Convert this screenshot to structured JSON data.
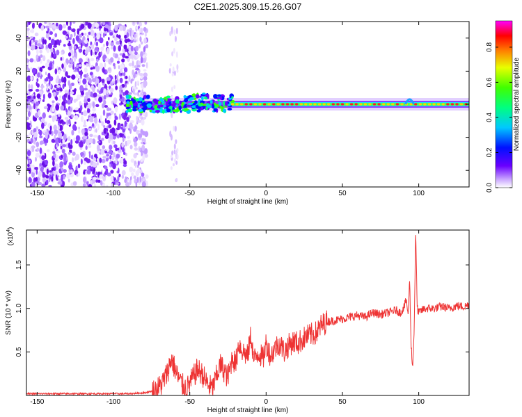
{
  "title": "C2E1.2025.309.15.26.G07",
  "chart_data": [
    {
      "type": "heatmap",
      "xlabel": "Height of straight line (km)",
      "ylabel": "Frequency (Hz)",
      "xlim": [
        -157,
        133
      ],
      "ylim": [
        -50,
        50
      ],
      "x_ticks": [
        -150,
        -100,
        -50,
        0,
        50,
        100
      ],
      "x_tick_labels": [
        "-150",
        "-100",
        "-50",
        "0",
        "50",
        "100"
      ],
      "y_ticks": [
        -40,
        -20,
        0,
        20,
        40
      ],
      "y_tick_labels": [
        "-40",
        "-20",
        "0",
        "20",
        "40"
      ],
      "colorbar": {
        "label": "Normalized spectral amplitude",
        "range": [
          0,
          0.95
        ],
        "ticks": [
          0.0,
          0.2,
          0.4,
          0.6,
          0.8
        ],
        "tick_labels": [
          "0.0",
          "0.2",
          "0.4",
          "0.6",
          "0.8"
        ],
        "colormap": "rainbow (white-violet-blue-cyan-green-yellow-red-magenta)"
      },
      "features": {
        "noise_region_km": [
          -157,
          -78
        ],
        "sparse_noise_column_km": [
          -63,
          -58
        ],
        "track_start_km": -92,
        "track_center_hz": 0,
        "track_amplitude_range": [
          0.4,
          0.9
        ],
        "bump_km": 94
      }
    },
    {
      "type": "line",
      "xlabel": "Height of straight line (km)",
      "ylabel": "SNR (10 * v/v)",
      "y_scale_label": "(x10",
      "y_scale_exponent": "4",
      "scale_factor": 10000,
      "xlim": [
        -157,
        133
      ],
      "ylim": [
        0,
        1.9
      ],
      "x_ticks": [
        -150,
        -100,
        -50,
        0,
        50,
        100
      ],
      "x_tick_labels": [
        "-150",
        "-100",
        "-50",
        "0",
        "50",
        "100"
      ],
      "y_ticks": [
        0.5,
        1.0,
        1.5
      ],
      "y_tick_labels": [
        "0.5",
        "1.0",
        "1.5"
      ],
      "color": "#ee3333",
      "series": [
        {
          "name": "SNR",
          "x": [
            -157,
            -140,
            -120,
            -100,
            -90,
            -80,
            -72,
            -68,
            -65,
            -62,
            -58,
            -55,
            -52,
            -48,
            -45,
            -42,
            -38,
            -35,
            -32,
            -30,
            -28,
            -25,
            -22,
            -20,
            -18,
            -15,
            -12,
            -10,
            -8,
            -5,
            -2,
            0,
            3,
            6,
            9,
            12,
            15,
            18,
            21,
            24,
            27,
            30,
            33,
            36,
            40,
            45,
            50,
            55,
            60,
            65,
            70,
            75,
            80,
            85,
            88,
            90,
            92,
            93,
            94,
            95,
            96,
            97,
            98,
            99,
            100,
            102,
            105,
            110,
            115,
            120,
            125,
            130,
            133
          ],
          "y": [
            0.02,
            0.02,
            0.02,
            0.02,
            0.02,
            0.03,
            0.06,
            0.14,
            0.25,
            0.42,
            0.22,
            0.12,
            0.08,
            0.2,
            0.3,
            0.25,
            0.12,
            0.08,
            0.25,
            0.35,
            0.3,
            0.2,
            0.45,
            0.35,
            0.6,
            0.5,
            0.45,
            0.7,
            0.4,
            0.5,
            0.42,
            0.6,
            0.45,
            0.55,
            0.6,
            0.5,
            0.58,
            0.62,
            0.6,
            0.65,
            0.68,
            0.7,
            0.72,
            0.8,
            0.85,
            0.86,
            0.88,
            0.9,
            0.92,
            0.9,
            0.95,
            0.93,
            0.95,
            0.98,
            0.95,
            1.0,
            1.1,
            0.9,
            1.35,
            0.6,
            0.3,
            0.75,
            1.9,
            1.0,
            0.95,
            0.98,
            1.0,
            1.0,
            1.02,
            1.0,
            1.03,
            1.02,
            1.05
          ]
        }
      ]
    }
  ]
}
